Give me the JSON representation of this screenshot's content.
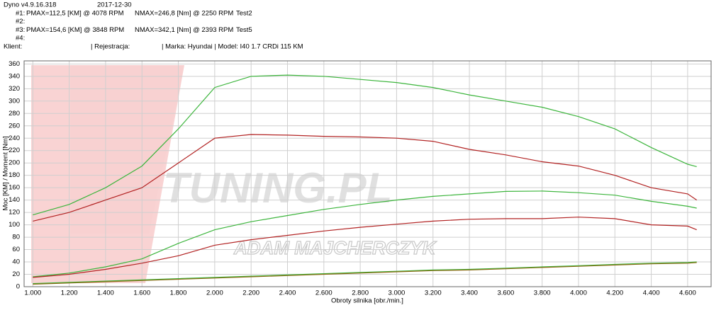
{
  "header": {
    "version": "Dyno v4.9.16.318",
    "date": "2017-12-30",
    "runs": [
      {
        "id": "#1:",
        "pmax": "PMAX=112,5 [KM] @ 4078 RPM",
        "nmax": "NMAX=246,8 [Nm] @ 2250 RPM",
        "test": "Test2"
      },
      {
        "id": "#2:"
      },
      {
        "id": "#3:",
        "pmax": "PMAX=154,6 [KM] @ 3848 RPM",
        "nmax": "NMAX=342,1 [Nm] @ 2393 RPM",
        "test": "Test5"
      },
      {
        "id": "#4:"
      }
    ],
    "client": "Klient:",
    "registration": "| Rejestracja:",
    "car": "| Marka: Hyundai | Model: I40 1.7 CRDi 115 KM"
  },
  "watermark": {
    "brand": "TUNING.PL",
    "author": "ADAM MAJCHERCZYK"
  },
  "chart_data": {
    "type": "line",
    "x_label": "Obroty silnika [obr./min.]",
    "y_label": "Moc [KM] / Moment [Nm]",
    "x": [
      1000,
      1200,
      1400,
      1600,
      1800,
      2000,
      2200,
      2400,
      2600,
      2800,
      3000,
      3200,
      3400,
      3600,
      3800,
      4000,
      4200,
      4400,
      4600,
      4650
    ],
    "series": [
      {
        "color": "#3cb53c",
        "values": [
          116,
          133,
          160,
          195,
          255,
          322,
          340,
          342,
          340,
          335,
          330,
          322,
          310,
          300,
          290,
          275,
          255,
          225,
          198,
          194
        ]
      },
      {
        "color": "#b22222",
        "values": [
          106,
          120,
          140,
          160,
          200,
          240,
          246,
          245,
          243,
          242,
          240,
          235,
          222,
          213,
          202,
          195,
          180,
          160,
          150,
          140
        ]
      },
      {
        "color": "#3cb53c",
        "values": [
          16,
          22,
          32,
          45,
          70,
          92,
          105,
          115,
          125,
          133,
          140,
          146,
          150,
          154,
          154.6,
          152,
          148,
          138,
          130,
          127
        ]
      },
      {
        "color": "#b22222",
        "values": [
          15,
          20,
          28,
          38,
          50,
          67,
          76,
          83,
          90,
          96,
          101,
          106,
          109,
          110,
          110,
          112.5,
          110,
          100,
          98,
          92
        ]
      },
      {
        "color": "#3cb53c",
        "values": [
          5,
          7,
          9,
          11,
          13,
          15,
          17,
          19,
          21,
          23,
          25,
          27,
          28,
          30,
          32,
          34,
          36,
          38,
          39,
          40
        ]
      },
      {
        "color": "#8b6b14",
        "values": [
          4,
          6,
          8,
          10,
          12,
          14,
          16,
          18,
          20,
          22,
          24,
          26,
          27,
          29,
          31,
          33,
          35,
          37,
          38,
          39
        ]
      }
    ],
    "xlim": [
      952,
      4729
    ],
    "ylim": [
      0,
      365
    ],
    "xticks": [
      {
        "value": 1000,
        "label": "1.000"
      },
      {
        "value": 1200,
        "label": "1.200"
      },
      {
        "value": 1400,
        "label": "1.400"
      },
      {
        "value": 1600,
        "label": "1.600"
      },
      {
        "value": 1800,
        "label": "1.800"
      },
      {
        "value": 2000,
        "label": "2.000"
      },
      {
        "value": 2200,
        "label": "2.200"
      },
      {
        "value": 2400,
        "label": "2.400"
      },
      {
        "value": 2600,
        "label": "2.600"
      },
      {
        "value": 2800,
        "label": "2.800"
      },
      {
        "value": 3000,
        "label": "3.000"
      },
      {
        "value": 3200,
        "label": "3.200"
      },
      {
        "value": 3400,
        "label": "3.400"
      },
      {
        "value": 3600,
        "label": "3.600"
      },
      {
        "value": 3800,
        "label": "3.800"
      },
      {
        "value": 4000,
        "label": "4.000"
      },
      {
        "value": 4200,
        "label": "4.200"
      },
      {
        "value": 4400,
        "label": "4.400"
      },
      {
        "value": 4600,
        "label": "4.600"
      }
    ],
    "yticks": [
      0,
      20,
      40,
      60,
      80,
      100,
      120,
      140,
      160,
      180,
      200,
      220,
      240,
      260,
      280,
      300,
      320,
      340,
      360
    ],
    "grid": true
  }
}
